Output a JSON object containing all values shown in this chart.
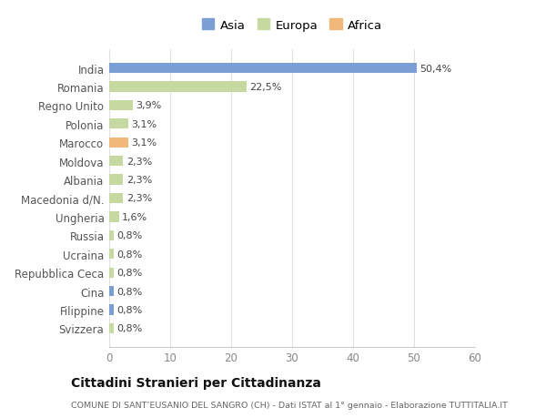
{
  "categories": [
    "India",
    "Romania",
    "Regno Unito",
    "Polonia",
    "Marocco",
    "Moldova",
    "Albania",
    "Macedonia d/N.",
    "Ungheria",
    "Russia",
    "Ucraina",
    "Repubblica Ceca",
    "Cina",
    "Filippine",
    "Svizzera"
  ],
  "values": [
    50.4,
    22.5,
    3.9,
    3.1,
    3.1,
    2.3,
    2.3,
    2.3,
    1.6,
    0.8,
    0.8,
    0.8,
    0.8,
    0.8,
    0.8
  ],
  "labels": [
    "50,4%",
    "22,5%",
    "3,9%",
    "3,1%",
    "3,1%",
    "2,3%",
    "2,3%",
    "2,3%",
    "1,6%",
    "0,8%",
    "0,8%",
    "0,8%",
    "0,8%",
    "0,8%",
    "0,8%"
  ],
  "colors": [
    "#7b9fd4",
    "#c5d9a0",
    "#c5d9a0",
    "#c5d9a0",
    "#f0b87a",
    "#c5d9a0",
    "#c5d9a0",
    "#c5d9a0",
    "#c5d9a0",
    "#c5d9a0",
    "#c5d9a0",
    "#c5d9a0",
    "#7b9fd4",
    "#7b9fd4",
    "#c5d9a0"
  ],
  "legend": [
    {
      "label": "Asia",
      "color": "#7b9fd4"
    },
    {
      "label": "Europa",
      "color": "#c5d9a0"
    },
    {
      "label": "Africa",
      "color": "#f0b87a"
    }
  ],
  "xlim": [
    0,
    60
  ],
  "xticks": [
    0,
    10,
    20,
    30,
    40,
    50,
    60
  ],
  "title": "Cittadini Stranieri per Cittadinanza",
  "subtitle": "COMUNE DI SANT’EUSANIO DEL SANGRO (CH) - Dati ISTAT al 1° gennaio - Elaborazione TUTTITALIA.IT",
  "background_color": "#ffffff",
  "plot_background": "#ffffff",
  "bar_height": 0.55
}
